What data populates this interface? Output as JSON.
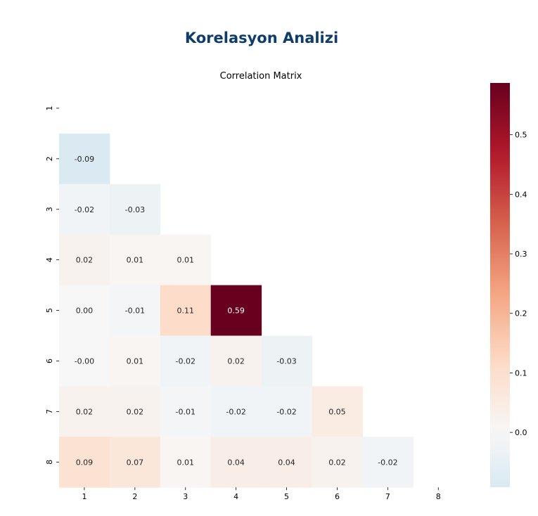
{
  "page": {
    "title": "Korelasyon Analizi"
  },
  "chart_data": {
    "type": "heatmap",
    "title": "Correlation Matrix",
    "mask": "upper-triangle-including-diagonal",
    "row_labels": [
      "1",
      "2",
      "3",
      "4",
      "5",
      "6",
      "7",
      "8"
    ],
    "col_labels": [
      "1",
      "2",
      "3",
      "4",
      "5",
      "6",
      "7",
      "8"
    ],
    "cells": [
      {
        "row": 2,
        "col": 1,
        "value": -0.09,
        "label": "-0.09"
      },
      {
        "row": 3,
        "col": 1,
        "value": -0.02,
        "label": "-0.02"
      },
      {
        "row": 3,
        "col": 2,
        "value": -0.03,
        "label": "-0.03"
      },
      {
        "row": 4,
        "col": 1,
        "value": 0.02,
        "label": "0.02"
      },
      {
        "row": 4,
        "col": 2,
        "value": 0.01,
        "label": "0.01"
      },
      {
        "row": 4,
        "col": 3,
        "value": 0.01,
        "label": "0.01"
      },
      {
        "row": 5,
        "col": 1,
        "value": 0.0,
        "label": "0.00"
      },
      {
        "row": 5,
        "col": 2,
        "value": -0.01,
        "label": "-0.01"
      },
      {
        "row": 5,
        "col": 3,
        "value": 0.11,
        "label": "0.11"
      },
      {
        "row": 5,
        "col": 4,
        "value": 0.59,
        "label": "0.59"
      },
      {
        "row": 6,
        "col": 1,
        "value": -0.0,
        "label": "-0.00"
      },
      {
        "row": 6,
        "col": 2,
        "value": 0.01,
        "label": "0.01"
      },
      {
        "row": 6,
        "col": 3,
        "value": -0.02,
        "label": "-0.02"
      },
      {
        "row": 6,
        "col": 4,
        "value": 0.02,
        "label": "0.02"
      },
      {
        "row": 6,
        "col": 5,
        "value": -0.03,
        "label": "-0.03"
      },
      {
        "row": 7,
        "col": 1,
        "value": 0.02,
        "label": "0.02"
      },
      {
        "row": 7,
        "col": 2,
        "value": 0.02,
        "label": "0.02"
      },
      {
        "row": 7,
        "col": 3,
        "value": -0.01,
        "label": "-0.01"
      },
      {
        "row": 7,
        "col": 4,
        "value": -0.02,
        "label": "-0.02"
      },
      {
        "row": 7,
        "col": 5,
        "value": -0.02,
        "label": "-0.02"
      },
      {
        "row": 7,
        "col": 6,
        "value": 0.05,
        "label": "0.05"
      },
      {
        "row": 8,
        "col": 1,
        "value": 0.09,
        "label": "0.09"
      },
      {
        "row": 8,
        "col": 2,
        "value": 0.07,
        "label": "0.07"
      },
      {
        "row": 8,
        "col": 3,
        "value": 0.01,
        "label": "0.01"
      },
      {
        "row": 8,
        "col": 4,
        "value": 0.04,
        "label": "0.04"
      },
      {
        "row": 8,
        "col": 5,
        "value": 0.04,
        "label": "0.04"
      },
      {
        "row": 8,
        "col": 6,
        "value": 0.02,
        "label": "0.02"
      },
      {
        "row": 8,
        "col": 7,
        "value": -0.02,
        "label": "-0.02"
      }
    ],
    "colorbar": {
      "colormap": "RdBu_r",
      "center": 0,
      "range": [
        -0.092,
        0.587
      ],
      "ticks": [
        "0.0",
        "0.1",
        "0.2",
        "0.3",
        "0.4",
        "0.5"
      ]
    },
    "colors": {
      "negative_max": "#053061",
      "zero": "#f7f7f7",
      "positive_max": "#67001f"
    }
  }
}
